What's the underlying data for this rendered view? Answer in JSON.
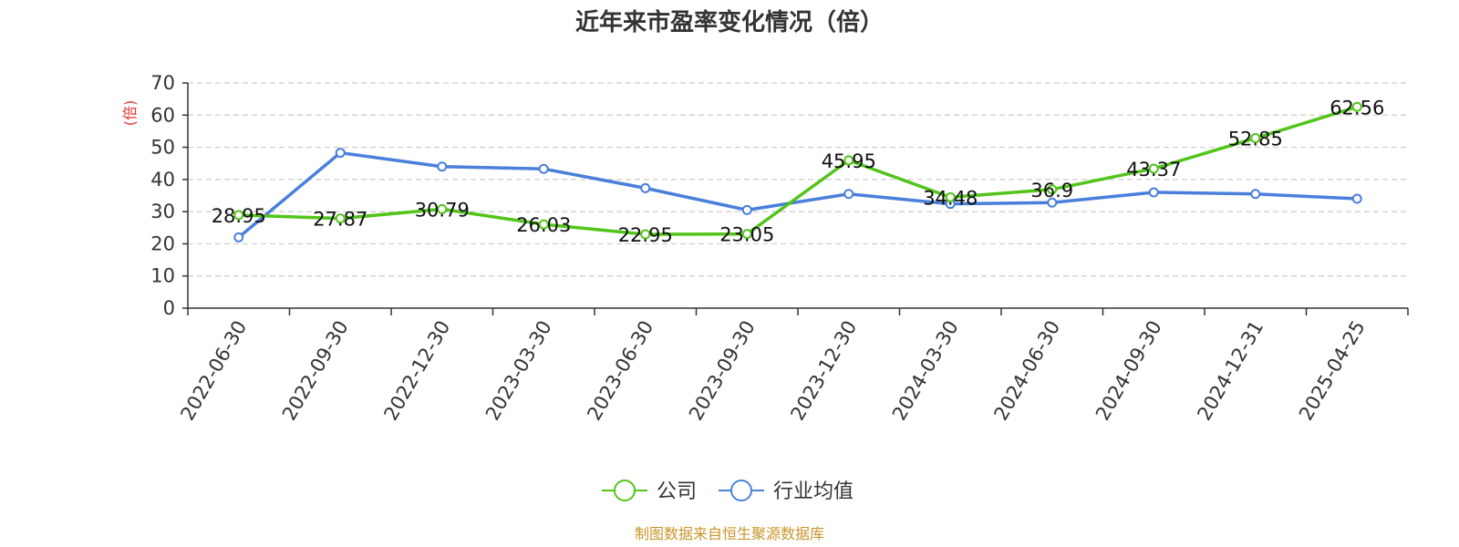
{
  "chart_data": {
    "type": "line",
    "title": "近年来市盈率变化情况（倍）",
    "ylabel": "(倍)",
    "xlabel": "",
    "ylim": [
      0,
      70
    ],
    "yticks": [
      0,
      10,
      20,
      30,
      40,
      50,
      60,
      70
    ],
    "grid": true,
    "legend_position": "bottom-center",
    "categories": [
      "2022-06-30",
      "2022-09-30",
      "2022-12-30",
      "2023-03-30",
      "2023-06-30",
      "2023-09-30",
      "2023-12-30",
      "2024-03-30",
      "2024-06-30",
      "2024-09-30",
      "2024-12-31",
      "2025-04-25"
    ],
    "series": [
      {
        "name": "公司",
        "color": "#52c41a",
        "values": [
          28.95,
          27.87,
          30.79,
          26.03,
          22.95,
          23.05,
          45.95,
          34.48,
          36.9,
          43.37,
          52.85,
          62.56
        ],
        "labels": [
          "28.95",
          "27.87",
          "30.79",
          "26.03",
          "22.95",
          "23.05",
          "45.95",
          "34.48",
          "36.9",
          "43.37",
          "52.85",
          "62.56"
        ]
      },
      {
        "name": "行业均值",
        "color": "#4a7fdb",
        "values": [
          22.0,
          48.3,
          44.0,
          43.3,
          37.3,
          30.5,
          35.5,
          32.4,
          32.8,
          36.0,
          35.5,
          34.0
        ]
      }
    ],
    "source": "制图数据来自恒生聚源数据库"
  }
}
